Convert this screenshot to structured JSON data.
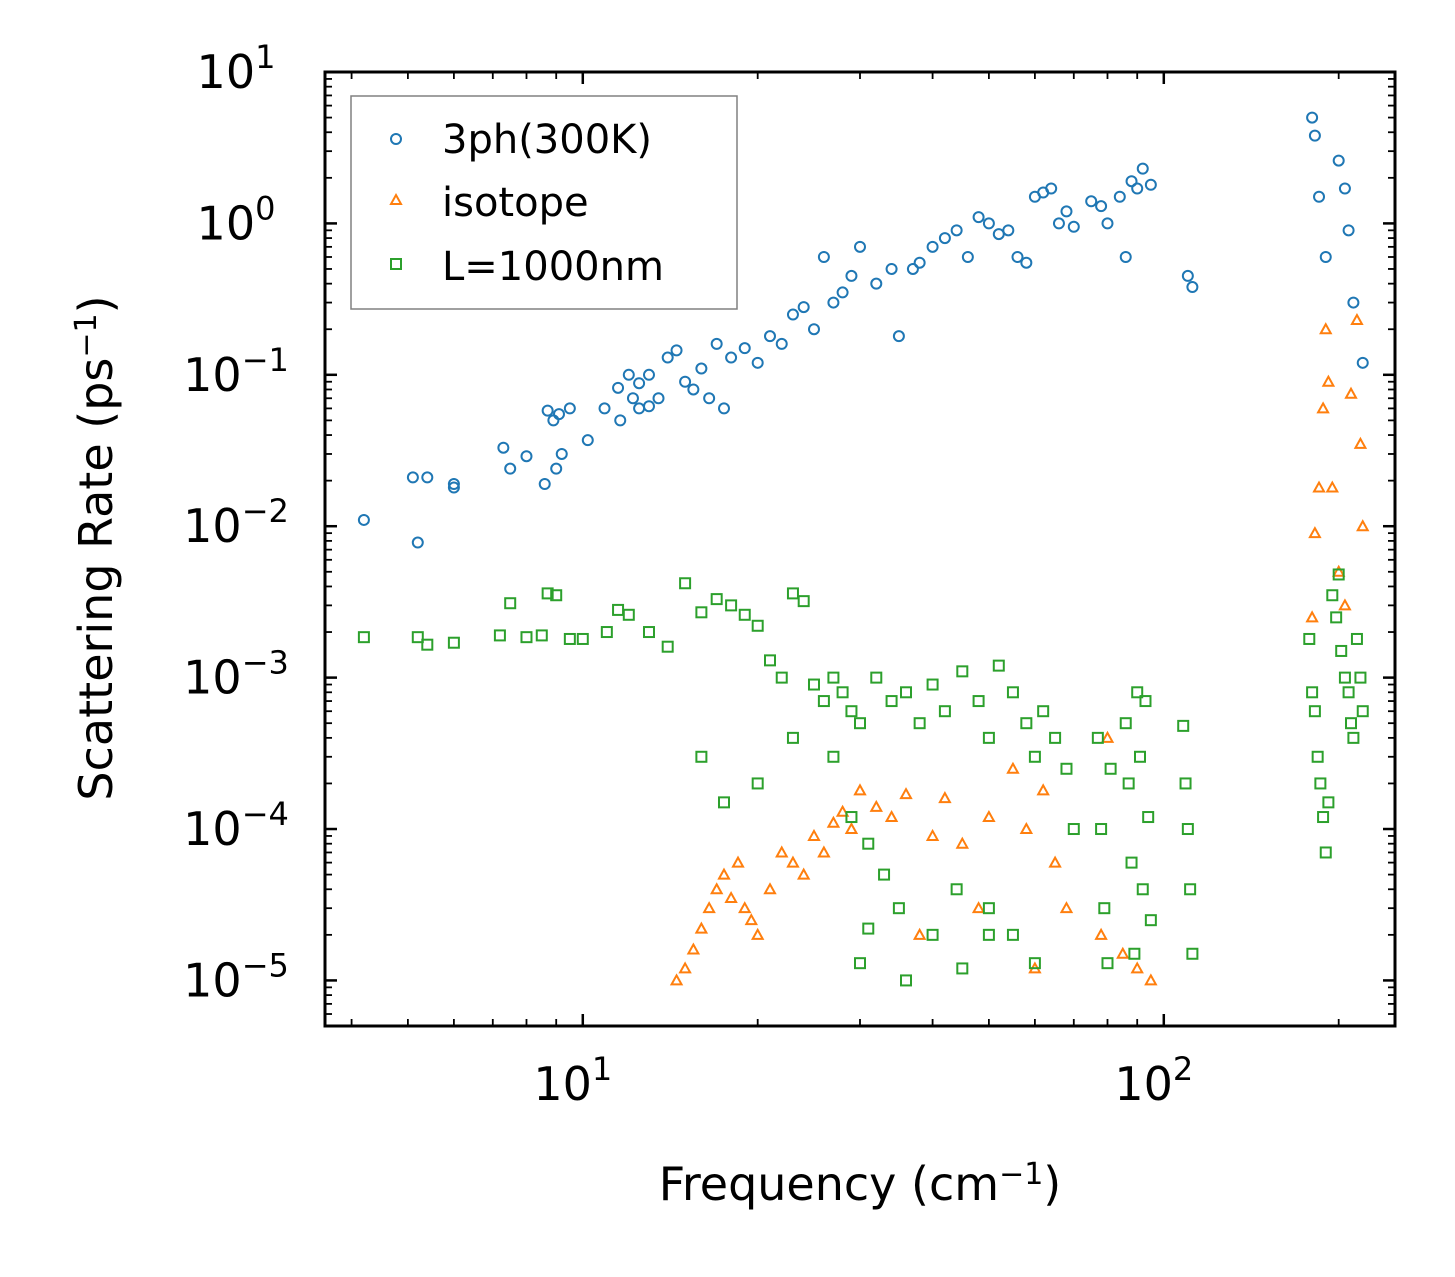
{
  "chart_data": {
    "type": "scatter",
    "xlabel": "Frequency (cm",
    "xlabel_exponent": "−1",
    "xlabel_suffix": ")",
    "ylabel": "Scattering Rate (ps",
    "ylabel_exponent": "−1",
    "ylabel_suffix": ")",
    "xscale": "log",
    "yscale": "log",
    "xlim": [
      3.6,
      250
    ],
    "ylim": [
      5e-06,
      10
    ],
    "grid": false,
    "legend_position": "top-left",
    "x_ticks": [
      {
        "base": "10",
        "exp": "1",
        "value": 10
      },
      {
        "base": "10",
        "exp": "2",
        "value": 100
      }
    ],
    "y_ticks": [
      {
        "base": "10",
        "exp": "1",
        "value": 10
      },
      {
        "base": "10",
        "exp": "0",
        "value": 1
      },
      {
        "base": "10",
        "exp": "−1",
        "value": 0.1
      },
      {
        "base": "10",
        "exp": "−2",
        "value": 0.01
      },
      {
        "base": "10",
        "exp": "−3",
        "value": 0.001
      },
      {
        "base": "10",
        "exp": "−4",
        "value": 0.0001
      },
      {
        "base": "10",
        "exp": "−5",
        "value": 1e-05
      }
    ],
    "series": [
      {
        "name": "3ph(300K)",
        "marker": "circle",
        "color": "#1f77b4",
        "points": [
          [
            4.2,
            0.011
          ],
          [
            5.2,
            0.0078
          ],
          [
            5.1,
            0.021
          ],
          [
            5.4,
            0.021
          ],
          [
            6.0,
            0.019
          ],
          [
            6.0,
            0.018
          ],
          [
            7.3,
            0.033
          ],
          [
            7.5,
            0.024
          ],
          [
            8.0,
            0.029
          ],
          [
            8.6,
            0.019
          ],
          [
            8.7,
            0.058
          ],
          [
            8.9,
            0.05
          ],
          [
            9.0,
            0.024
          ],
          [
            9.2,
            0.03
          ],
          [
            9.1,
            0.055
          ],
          [
            9.5,
            0.06
          ],
          [
            10.2,
            0.037
          ],
          [
            10.9,
            0.06
          ],
          [
            11.5,
            0.082
          ],
          [
            11.6,
            0.05
          ],
          [
            12.0,
            0.1
          ],
          [
            12.2,
            0.07
          ],
          [
            12.5,
            0.06
          ],
          [
            12.5,
            0.088
          ],
          [
            13.0,
            0.1
          ],
          [
            13.0,
            0.062
          ],
          [
            13.5,
            0.07
          ],
          [
            14.0,
            0.13
          ],
          [
            14.5,
            0.145
          ],
          [
            15.0,
            0.09
          ],
          [
            15.5,
            0.08
          ],
          [
            16.0,
            0.11
          ],
          [
            16.5,
            0.07
          ],
          [
            17.0,
            0.16
          ],
          [
            17.5,
            0.06
          ],
          [
            18.0,
            0.13
          ],
          [
            19.0,
            0.15
          ],
          [
            20.0,
            0.12
          ],
          [
            21.0,
            0.18
          ],
          [
            22.0,
            0.16
          ],
          [
            23.0,
            0.25
          ],
          [
            24.0,
            0.28
          ],
          [
            25.0,
            0.2
          ],
          [
            26.0,
            0.6
          ],
          [
            27.0,
            0.3
          ],
          [
            28.0,
            0.35
          ],
          [
            29.0,
            0.45
          ],
          [
            30.0,
            0.7
          ],
          [
            32.0,
            0.4
          ],
          [
            34.0,
            0.5
          ],
          [
            35.0,
            0.18
          ],
          [
            37.0,
            0.5
          ],
          [
            38.0,
            0.55
          ],
          [
            40.0,
            0.7
          ],
          [
            42.0,
            0.8
          ],
          [
            44.0,
            0.9
          ],
          [
            46.0,
            0.6
          ],
          [
            48.0,
            1.1
          ],
          [
            50.0,
            1.0
          ],
          [
            52.0,
            0.85
          ],
          [
            54.0,
            0.9
          ],
          [
            56.0,
            0.6
          ],
          [
            58.0,
            0.55
          ],
          [
            60.0,
            1.5
          ],
          [
            62.0,
            1.6
          ],
          [
            64.0,
            1.7
          ],
          [
            66.0,
            1.0
          ],
          [
            68.0,
            1.2
          ],
          [
            70.0,
            0.95
          ],
          [
            75.0,
            1.4
          ],
          [
            78.0,
            1.3
          ],
          [
            80.0,
            1.0
          ],
          [
            84.0,
            1.5
          ],
          [
            86.0,
            0.6
          ],
          [
            88.0,
            1.9
          ],
          [
            90.0,
            1.7
          ],
          [
            92.0,
            2.3
          ],
          [
            95.0,
            1.8
          ],
          [
            110.0,
            0.45
          ],
          [
            112.0,
            0.38
          ],
          [
            180.0,
            5.0
          ],
          [
            182.0,
            3.8
          ],
          [
            185.0,
            1.5
          ],
          [
            190.0,
            0.6
          ],
          [
            200.0,
            2.6
          ],
          [
            205.0,
            1.7
          ],
          [
            208.0,
            0.9
          ],
          [
            212.0,
            0.3
          ],
          [
            220.0,
            0.12
          ]
        ]
      },
      {
        "name": "isotope",
        "marker": "triangle",
        "color": "#ff7f0e",
        "points": [
          [
            14.5,
            1e-05
          ],
          [
            15.0,
            1.2e-05
          ],
          [
            15.5,
            1.6e-05
          ],
          [
            16.0,
            2.2e-05
          ],
          [
            16.5,
            3e-05
          ],
          [
            17.0,
            4e-05
          ],
          [
            17.5,
            5e-05
          ],
          [
            18.0,
            3.5e-05
          ],
          [
            18.5,
            6e-05
          ],
          [
            19.0,
            3e-05
          ],
          [
            19.5,
            2.5e-05
          ],
          [
            20.0,
            2e-05
          ],
          [
            21.0,
            4e-05
          ],
          [
            22.0,
            7e-05
          ],
          [
            23.0,
            6e-05
          ],
          [
            24.0,
            5e-05
          ],
          [
            25.0,
            9e-05
          ],
          [
            26.0,
            7e-05
          ],
          [
            27.0,
            0.00011
          ],
          [
            28.0,
            0.00013
          ],
          [
            29.0,
            0.0001
          ],
          [
            30.0,
            0.00018
          ],
          [
            32.0,
            0.00014
          ],
          [
            34.0,
            0.00012
          ],
          [
            36.0,
            0.00017
          ],
          [
            38.0,
            2e-05
          ],
          [
            40.0,
            9e-05
          ],
          [
            42.0,
            0.00016
          ],
          [
            45.0,
            8e-05
          ],
          [
            48.0,
            3e-05
          ],
          [
            50.0,
            0.00012
          ],
          [
            55.0,
            0.00025
          ],
          [
            58.0,
            0.0001
          ],
          [
            60.0,
            1.2e-05
          ],
          [
            62.0,
            0.00018
          ],
          [
            65.0,
            6e-05
          ],
          [
            68.0,
            3e-05
          ],
          [
            78.0,
            2e-05
          ],
          [
            80.0,
            0.0004
          ],
          [
            85.0,
            1.5e-05
          ],
          [
            90.0,
            1.2e-05
          ],
          [
            95.0,
            1e-05
          ],
          [
            180.0,
            0.0025
          ],
          [
            182.0,
            0.009
          ],
          [
            185.0,
            0.018
          ],
          [
            188.0,
            0.06
          ],
          [
            190.0,
            0.2
          ],
          [
            192.0,
            0.09
          ],
          [
            195.0,
            0.018
          ],
          [
            200.0,
            0.005
          ],
          [
            205.0,
            0.003
          ],
          [
            210.0,
            0.075
          ],
          [
            215.0,
            0.23
          ],
          [
            218.0,
            0.035
          ],
          [
            220.0,
            0.01
          ]
        ]
      },
      {
        "name": "L=1000nm",
        "marker": "square",
        "color": "#2ca02c",
        "points": [
          [
            4.2,
            0.00185
          ],
          [
            5.2,
            0.00185
          ],
          [
            5.4,
            0.00165
          ],
          [
            6.0,
            0.0017
          ],
          [
            7.2,
            0.0019
          ],
          [
            7.5,
            0.0031
          ],
          [
            8.0,
            0.00185
          ],
          [
            8.5,
            0.0019
          ],
          [
            8.7,
            0.0036
          ],
          [
            9.0,
            0.0035
          ],
          [
            9.5,
            0.0018
          ],
          [
            10.0,
            0.0018
          ],
          [
            11.0,
            0.002
          ],
          [
            11.5,
            0.0028
          ],
          [
            12.0,
            0.0026
          ],
          [
            13.0,
            0.002
          ],
          [
            14.0,
            0.0016
          ],
          [
            15.0,
            0.0042
          ],
          [
            16.0,
            0.0027
          ],
          [
            17.0,
            0.0033
          ],
          [
            18.0,
            0.003
          ],
          [
            19.0,
            0.0026
          ],
          [
            20.0,
            0.0022
          ],
          [
            21.0,
            0.0013
          ],
          [
            22.0,
            0.001
          ],
          [
            23.0,
            0.0036
          ],
          [
            24.0,
            0.0032
          ],
          [
            25.0,
            0.0009
          ],
          [
            26.0,
            0.0007
          ],
          [
            27.0,
            0.001
          ],
          [
            28.0,
            0.0008
          ],
          [
            29.0,
            0.0006
          ],
          [
            30.0,
            0.0005
          ],
          [
            32.0,
            0.001
          ],
          [
            34.0,
            0.0007
          ],
          [
            36.0,
            0.0008
          ],
          [
            38.0,
            0.0005
          ],
          [
            40.0,
            0.0009
          ],
          [
            42.0,
            0.0006
          ],
          [
            45.0,
            0.0011
          ],
          [
            48.0,
            0.0007
          ],
          [
            50.0,
            0.0004
          ],
          [
            52.0,
            0.0012
          ],
          [
            55.0,
            0.0008
          ],
          [
            58.0,
            0.0005
          ],
          [
            60.0,
            0.0003
          ],
          [
            62.0,
            0.0006
          ],
          [
            65.0,
            0.0004
          ],
          [
            68.0,
            0.00025
          ],
          [
            70.0,
            0.0001
          ],
          [
            16.0,
            0.0003
          ],
          [
            17.5,
            0.00015
          ],
          [
            20.0,
            0.0002
          ],
          [
            23.0,
            0.0004
          ],
          [
            27.0,
            0.0003
          ],
          [
            29.0,
            0.00012
          ],
          [
            31.0,
            8e-05
          ],
          [
            33.0,
            5e-05
          ],
          [
            35.0,
            3e-05
          ],
          [
            40.0,
            2e-05
          ],
          [
            44.0,
            4e-05
          ],
          [
            50.0,
            3e-05
          ],
          [
            55.0,
            2e-05
          ],
          [
            30.0,
            1.3e-05
          ],
          [
            31.0,
            2.2e-05
          ],
          [
            36.0,
            1e-05
          ],
          [
            45.0,
            1.2e-05
          ],
          [
            50.0,
            2e-05
          ],
          [
            60.0,
            1.3e-05
          ],
          [
            77.0,
            0.0004
          ],
          [
            78.0,
            0.0001
          ],
          [
            79.0,
            3e-05
          ],
          [
            80.0,
            1.3e-05
          ],
          [
            81.0,
            0.00025
          ],
          [
            86.0,
            0.0005
          ],
          [
            87.0,
            0.0002
          ],
          [
            88.0,
            6e-05
          ],
          [
            89.0,
            1.5e-05
          ],
          [
            90.0,
            0.0008
          ],
          [
            91.0,
            0.0003
          ],
          [
            92.0,
            4e-05
          ],
          [
            93.0,
            0.0007
          ],
          [
            94.0,
            0.00012
          ],
          [
            95.0,
            2.5e-05
          ],
          [
            108.0,
            0.00048
          ],
          [
            109.0,
            0.0002
          ],
          [
            110.0,
            0.0001
          ],
          [
            111.0,
            4e-05
          ],
          [
            112.0,
            1.5e-05
          ],
          [
            178.0,
            0.0018
          ],
          [
            180.0,
            0.0008
          ],
          [
            182.0,
            0.0006
          ],
          [
            184.0,
            0.0003
          ],
          [
            186.0,
            0.0002
          ],
          [
            188.0,
            0.00012
          ],
          [
            190.0,
            7e-05
          ],
          [
            192.0,
            0.00015
          ],
          [
            195.0,
            0.0035
          ],
          [
            198.0,
            0.0025
          ],
          [
            200.0,
            0.0048
          ],
          [
            202.0,
            0.0015
          ],
          [
            205.0,
            0.001
          ],
          [
            208.0,
            0.0008
          ],
          [
            210.0,
            0.0005
          ],
          [
            212.0,
            0.0004
          ],
          [
            215.0,
            0.0018
          ],
          [
            218.0,
            0.001
          ],
          [
            220.0,
            0.0006
          ]
        ]
      }
    ]
  },
  "colors": {
    "series_1": "#1f77b4",
    "series_2": "#ff7f0e",
    "series_3": "#2ca02c",
    "axes": "#000000",
    "legend_border": "#808080"
  }
}
